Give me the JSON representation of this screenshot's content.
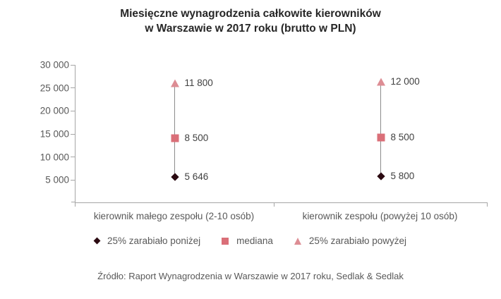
{
  "title": {
    "line1": "Miesięczne wynagrodzenia całkowite kierowników",
    "line2": "w Warszawie w 2017 roku (brutto w PLN)"
  },
  "legend": {
    "items": [
      {
        "marker": "diamond",
        "label": "25% zarabiało poniżej"
      },
      {
        "marker": "square",
        "label": "mediana"
      },
      {
        "marker": "triangle",
        "label": "25% zarabiało powyżej"
      }
    ]
  },
  "source": "Źródło: Raport Wynagrodzenia w Warszawie w 2017 roku, Sedlak & Sedlak",
  "chart_data": {
    "type": "scatter",
    "subtype": "range-marker chart, markers drawn at cumulative (stacked) heights",
    "title": "Miesięczne wynagrodzenia całkowite kierowników w Warszawie w 2017 roku (brutto w PLN)",
    "ylim": [
      0,
      30000
    ],
    "grid": false,
    "legend_position": "bottom",
    "yticks": [
      {
        "value": 30000,
        "label": "30 000"
      },
      {
        "value": 25000,
        "label": "25 000"
      },
      {
        "value": 20000,
        "label": "20 000"
      },
      {
        "value": 15000,
        "label": "15 000"
      },
      {
        "value": 10000,
        "label": "10 000"
      },
      {
        "value": 5000,
        "label": "5 000"
      }
    ],
    "categories": [
      "kierownik małego zespołu (2-10 osób)",
      "kierownik zespołu (powyżej 10 osób)"
    ],
    "series": [
      {
        "name": "25% zarabiało poniżej",
        "marker": "diamond",
        "values": [
          5646,
          5800
        ],
        "labels": [
          "5 646",
          "5 800"
        ]
      },
      {
        "name": "mediana",
        "marker": "square",
        "values": [
          8500,
          8500
        ],
        "labels": [
          "8 500",
          "8 500"
        ]
      },
      {
        "name": "25% zarabiało powyżej",
        "marker": "triangle",
        "values": [
          11800,
          12000
        ],
        "labels": [
          "11 800",
          "12 000"
        ]
      }
    ],
    "colors": {
      "below": "#2b0a11",
      "median": "#da6f78",
      "above": "#dd8d94",
      "axis": "#a6a6a6",
      "connector": "#8c8c8c",
      "text_gray": "#595959",
      "label_dark": "#404040"
    }
  }
}
